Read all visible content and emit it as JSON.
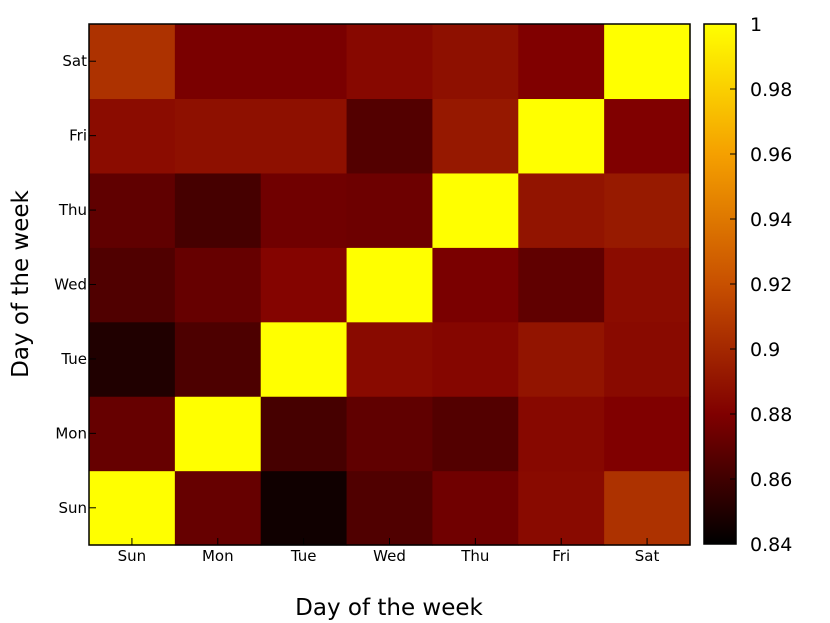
{
  "chart_data": {
    "type": "heatmap",
    "xlabel": "Day of the week",
    "ylabel": "Day of the week",
    "x_categories": [
      "Sun",
      "Mon",
      "Tue",
      "Wed",
      "Thu",
      "Fri",
      "Sat"
    ],
    "y_categories": [
      "Sun",
      "Mon",
      "Tue",
      "Wed",
      "Thu",
      "Fri",
      "Sat"
    ],
    "matrix": [
      [
        1.0,
        0.872,
        0.845,
        0.865,
        0.875,
        0.885,
        0.905
      ],
      [
        0.872,
        1.0,
        0.862,
        0.87,
        0.866,
        0.884,
        0.88
      ],
      [
        0.85,
        0.864,
        1.0,
        0.885,
        0.883,
        0.89,
        0.885
      ],
      [
        0.865,
        0.872,
        0.882,
        1.0,
        0.878,
        0.87,
        0.886
      ],
      [
        0.87,
        0.862,
        0.875,
        0.874,
        1.0,
        0.89,
        0.893
      ],
      [
        0.886,
        0.888,
        0.888,
        0.866,
        0.892,
        1.0,
        0.88
      ],
      [
        0.905,
        0.878,
        0.878,
        0.884,
        0.888,
        0.88,
        1.0
      ]
    ],
    "colorbar": {
      "min": 0.84,
      "max": 1,
      "ticks": [
        0.84,
        0.86,
        0.88,
        0.9,
        0.92,
        0.94,
        0.96,
        0.98,
        1
      ],
      "tick_labels": [
        "0.84",
        "0.86",
        "0.88",
        "0.9",
        "0.92",
        "0.94",
        "0.96",
        "0.98",
        "1"
      ]
    },
    "colormap": [
      "#000000",
      "#800000",
      "#c85000",
      "#f5a000",
      "#ffff00"
    ],
    "grid": false
  }
}
